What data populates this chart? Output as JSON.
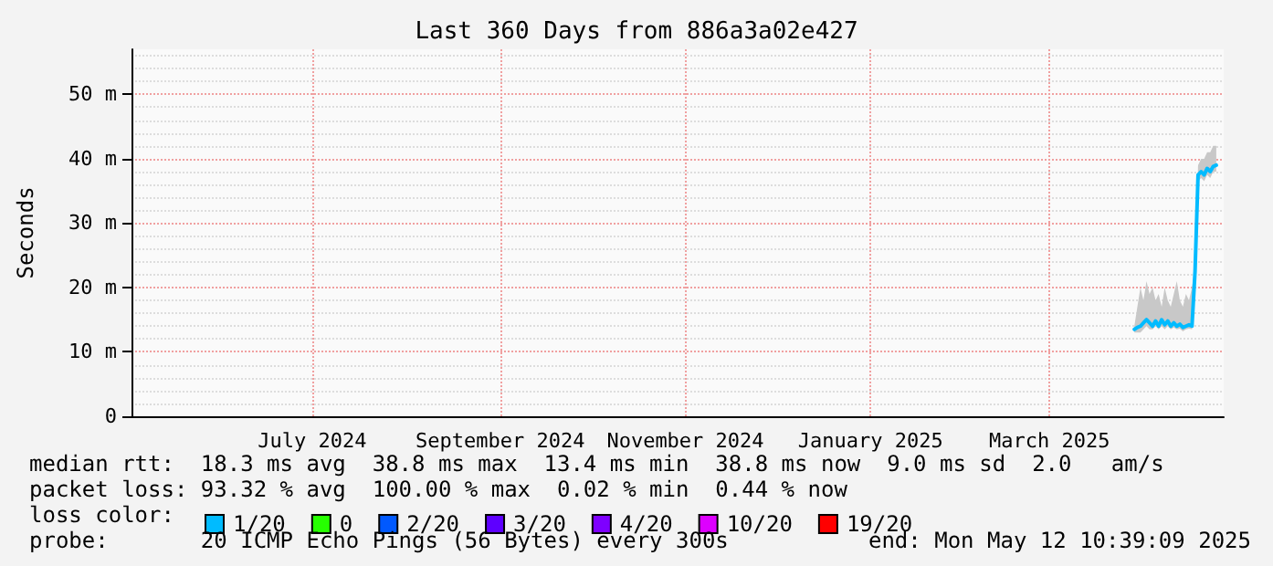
{
  "chart_data": {
    "type": "line",
    "title": "Last 360 Days from 886a3a02e427",
    "ylabel": "Seconds",
    "x": [
      "2025-04-13",
      "2025-04-14",
      "2025-04-15",
      "2025-04-16",
      "2025-04-17",
      "2025-04-18",
      "2025-04-19",
      "2025-04-20",
      "2025-04-21",
      "2025-04-22",
      "2025-04-23",
      "2025-04-24",
      "2025-04-25",
      "2025-04-26",
      "2025-04-27",
      "2025-04-28",
      "2025-04-29",
      "2025-04-30",
      "2025-05-01",
      "2025-05-02",
      "2025-05-03",
      "2025-05-04",
      "2025-05-05",
      "2025-05-06",
      "2025-05-07",
      "2025-05-08",
      "2025-05-09",
      "2025-05-10"
    ],
    "series": [
      {
        "name": "1/20",
        "color": "#00bbff",
        "values": [
          13.5,
          13.8,
          14,
          14.5,
          15,
          14.5,
          14,
          14.8,
          14,
          15,
          14.2,
          14.8,
          14,
          14.5,
          14,
          14.3,
          13.8,
          14,
          14.2,
          14,
          22.5,
          37.5,
          38,
          37.5,
          38.5,
          38,
          38.8,
          39
        ],
        "lower": [
          13,
          13,
          13,
          13.5,
          14,
          13.5,
          13.5,
          14,
          13.5,
          14,
          13.5,
          14,
          13.5,
          13.8,
          13.5,
          13.6,
          13.2,
          13.5,
          13.6,
          13.5,
          22,
          36.5,
          37,
          36.5,
          37.5,
          37,
          38,
          38
        ],
        "upper": [
          14,
          17,
          20,
          18,
          21,
          19,
          20,
          18,
          19,
          17,
          20,
          18,
          17,
          19,
          21,
          18,
          17,
          19,
          18,
          20,
          23,
          39,
          40,
          40,
          41,
          41,
          42,
          42
        ]
      },
      {
        "name": "0",
        "color": "#26ff00",
        "values": [
          null,
          null,
          null,
          null,
          null,
          null,
          null,
          null,
          null,
          null,
          null,
          null,
          null,
          null,
          null,
          null,
          null,
          null,
          null,
          null,
          null,
          null,
          null,
          null,
          null,
          null,
          null,
          null
        ]
      },
      {
        "name": "2/20",
        "color": "#0059ff",
        "values": [
          null,
          null,
          null,
          null,
          null,
          null,
          null,
          null,
          null,
          null,
          null,
          null,
          null,
          null,
          null,
          null,
          null,
          null,
          null,
          null,
          null,
          null,
          null,
          null,
          null,
          null,
          null,
          null
        ]
      },
      {
        "name": "3/20",
        "color": "#5e00ff",
        "values": [
          null,
          null,
          null,
          null,
          null,
          null,
          null,
          null,
          null,
          null,
          null,
          null,
          null,
          null,
          null,
          null,
          null,
          null,
          null,
          null,
          null,
          null,
          null,
          null,
          null,
          null,
          null,
          null
        ]
      },
      {
        "name": "4/20",
        "color": "#7e00ff",
        "values": [
          null,
          null,
          null,
          null,
          null,
          null,
          null,
          null,
          null,
          null,
          null,
          null,
          null,
          null,
          null,
          null,
          null,
          null,
          null,
          null,
          null,
          null,
          null,
          null,
          null,
          null,
          null,
          null
        ]
      },
      {
        "name": "10/20",
        "color": "#dd00ff",
        "values": [
          null,
          null,
          null,
          null,
          null,
          null,
          null,
          null,
          null,
          null,
          null,
          null,
          null,
          null,
          null,
          null,
          null,
          null,
          null,
          null,
          null,
          null,
          null,
          null,
          null,
          null,
          null,
          null
        ]
      },
      {
        "name": "19/20",
        "color": "#ff0000",
        "values": [
          null,
          null,
          null,
          null,
          null,
          null,
          null,
          null,
          null,
          null,
          null,
          null,
          null,
          null,
          null,
          null,
          null,
          null,
          null,
          null,
          null,
          null,
          null,
          null,
          null,
          null,
          null,
          null
        ]
      }
    ],
    "xlim": [
      "2024-05-17T10:39",
      "2025-05-12T10:39"
    ],
    "xticks": [
      {
        "value": "2024-07-16",
        "label": "July 2024"
      },
      {
        "value": "2024-09-16",
        "label": "September 2024"
      },
      {
        "value": "2024-11-16",
        "label": "November 2024"
      },
      {
        "value": "2025-01-16",
        "label": "January 2025"
      },
      {
        "value": "2025-03-16",
        "label": "March 2025"
      }
    ],
    "ylim": [
      0,
      57
    ],
    "yticks": [
      0,
      {
        "value": 10,
        "label": "10 m"
      },
      {
        "value": 20,
        "label": "20 m"
      },
      {
        "value": 30,
        "label": "30 m"
      },
      {
        "value": 40,
        "label": "40 m"
      },
      {
        "value": 50,
        "label": "50 m"
      }
    ],
    "grid": true,
    "legend": "bottom left",
    "legend_title": "loss color:",
    "line_style": "solid",
    "annotations": [
      "median rtt:  18.3 ms avg  38.8 ms max  13.4 ms min  38.8 ms now  9.0 ms sd  2.0   am/s",
      "packet loss: 93.32 % avg  100.00 % max  0.02 % min  0.44 % now",
      "probe:       20 ICMP Echo Pings (56 Bytes) every 300s",
      "end: Mon May 12 10:39:09 2025"
    ]
  }
}
